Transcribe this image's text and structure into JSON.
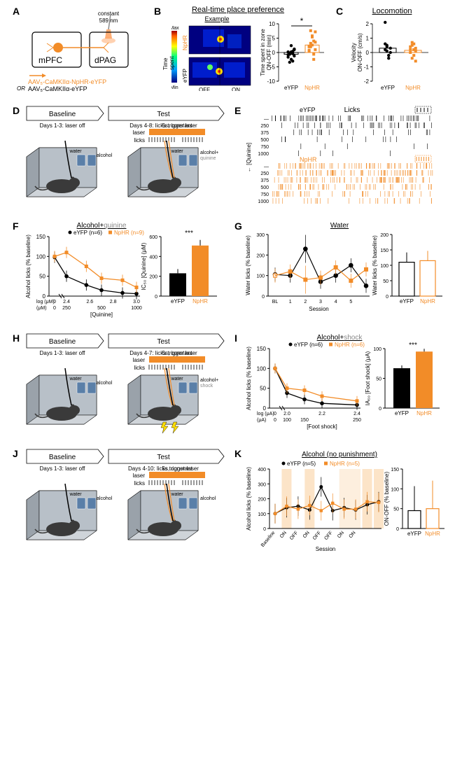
{
  "colors": {
    "orange": "#f28c28",
    "black": "#000000",
    "gray": "#888888",
    "lightorange": "#fce4c8",
    "bg": "#ffffff"
  },
  "panelA": {
    "label": "A",
    "constant_label": "constant",
    "wavelength": "589 nm",
    "left_box": "mPFC",
    "right_box": "dPAG",
    "virus1": "AAV₅-CaMKIIα-NpHR-eYFP",
    "virus2": "AAV₅-CaMKIIα-eYFP",
    "or_text": "OR"
  },
  "panelB": {
    "label": "B",
    "title": "Real-time place preference",
    "subtitle": "Example",
    "hm_label1": "NpHR",
    "hm_label2": "eYFP",
    "colorbar_top": "Max",
    "colorbar_bot": "Min",
    "colorbar_title": "Time spent",
    "off": "OFF",
    "on": "ON",
    "ylabel": "Time spent in zone\nON-OFF (min)",
    "sig": "*",
    "x1": "eYFP",
    "x2": "NpHR",
    "yticks": [
      -10,
      -5,
      0,
      5,
      10
    ],
    "eYFP_vals": [
      0.2,
      -0.6,
      -2.4,
      -0.4,
      1.0,
      -1.6,
      -3.4,
      0.2,
      -3.0,
      1.2,
      -0.8,
      -0.6,
      2.4,
      0.4,
      -1.2
    ],
    "NpHR_vals": [
      2.0,
      3.2,
      5.4,
      4.0,
      1.0,
      0.8,
      7.6,
      2.6,
      -2.4,
      7.2,
      0.4,
      2.0,
      5.8,
      -0.6,
      3.6,
      2.2
    ]
  },
  "panelC": {
    "label": "C",
    "title": "Locomotion",
    "ylabel": "Velocity\nON-OFF (cm/s)",
    "x1": "eYFP",
    "x2": "NpHR",
    "yticks": [
      -2,
      -1,
      0,
      1,
      2
    ],
    "eYFP_vals": [
      0.2,
      0.4,
      -0.4,
      0.0,
      0.6,
      0.1,
      -0.2,
      0.3,
      2.1,
      0.5
    ],
    "NpHR_vals": [
      0.2,
      -0.4,
      0.6,
      0.3,
      0.0,
      0.5,
      -0.2,
      0.1,
      0.4,
      0.7,
      0.2,
      -0.6
    ]
  },
  "panelD": {
    "label": "D",
    "baseline_title": "Baseline",
    "baseline_sub": "Days 1-3: laser off",
    "test_title": "Test",
    "test_sub": "Days 4-8: licks trigger laser",
    "laser_dur": "5s, constant",
    "laser_label": "laser",
    "licks_label": "licks",
    "water": "water",
    "alcohol": "alcohol",
    "quinine": "quinine"
  },
  "panelE": {
    "label": "E",
    "title": "Licks",
    "eYFP_label": "eYFP",
    "NpHR_label": "NpHR",
    "ylabel": "[Quinine]",
    "conc": [
      "—",
      "250",
      "375",
      "500",
      "750",
      "1000"
    ],
    "xlabel": "Time (min)",
    "xmin": 0,
    "xmax": 60
  },
  "panelF": {
    "label": "F",
    "title": "Alcohol+",
    "title_gray": "quinine",
    "legend_eYFP": "eYFP (n=6)",
    "legend_NpHR": "NpHR (n=9)",
    "ylabel": "Alcohol licks (% baseline)",
    "xlabel1": "log (μM)",
    "xlabel2": "(μM)",
    "xlabel3": "[Quinine]",
    "xticks_log": [
      "0",
      "",
      "2.4",
      "",
      "2.6",
      "",
      "2.8",
      "",
      "3.0"
    ],
    "xticks_lin": [
      "0",
      "",
      "250",
      "",
      "500",
      "",
      "",
      "1000"
    ],
    "yticks": [
      0,
      50,
      100,
      150
    ],
    "eYFP_x": [
      0,
      2.4,
      2.57,
      2.7,
      2.88,
      3.0
    ],
    "eYFP_y": [
      98,
      50,
      28,
      15,
      8,
      6
    ],
    "NpHR_x": [
      0,
      2.4,
      2.57,
      2.7,
      2.88,
      3.0
    ],
    "NpHR_y": [
      100,
      110,
      75,
      45,
      40,
      22
    ],
    "bar_ylabel": "IC₅₀ [Quinine] (μM)",
    "bar_yticks": [
      0,
      200,
      400,
      600
    ],
    "bar_eYFP": 230,
    "bar_NpHR": 510,
    "sig": "***",
    "x1": "eYFP",
    "x2": "NpHR"
  },
  "panelG": {
    "label": "G",
    "title": "Water",
    "ylabel": "Water licks (% baseline)",
    "xlabel": "Session",
    "xticks": [
      "BL",
      "1",
      "2",
      "3",
      "4",
      "5"
    ],
    "yticks": [
      0,
      100,
      200,
      300
    ],
    "eYFP_y": [
      105,
      100,
      230,
      70,
      100,
      150,
      50
    ],
    "NpHR_y": [
      100,
      120,
      80,
      90,
      140,
      75,
      130
    ],
    "bar_ylabel": "Water licks (% baseline)",
    "bar_yticks": [
      0,
      50,
      100,
      150,
      200
    ],
    "bar_eYFP": 110,
    "bar_NpHR": 115,
    "x1": "eYFP",
    "x2": "NpHR"
  },
  "panelH": {
    "label": "H",
    "baseline_title": "Baseline",
    "baseline_sub": "Days 1-3: laser off",
    "test_title": "Test",
    "test_sub": "Days 4-7: licks trigger laser",
    "laser_dur": "5s, constant",
    "laser_label": "laser",
    "licks_label": "licks",
    "water": "water",
    "alcohol": "alcohol",
    "shock": "shock"
  },
  "panelI": {
    "label": "I",
    "title": "Alcohol+",
    "title_gray": "shock",
    "legend_eYFP": "eYFP (n=6)",
    "legend_NpHR": "NpHR (n=6)",
    "ylabel": "Alcohol licks (% baseline)",
    "xlabel1": "log (μA)",
    "xlabel2": "(μA)",
    "xlabel3": "[Foot shock]",
    "xticks_log": [
      "0",
      "",
      "2.0",
      "",
      "2.2",
      "",
      "2.4"
    ],
    "xticks_lin": [
      "0",
      "",
      "100",
      "150",
      "",
      "250"
    ],
    "yticks": [
      0,
      50,
      100,
      150
    ],
    "eYFP_y": [
      100,
      38,
      22,
      12,
      8
    ],
    "NpHR_y": [
      100,
      50,
      45,
      30,
      18
    ],
    "bar_ylabel": "IA₅₀ [Foot shock] (μA)",
    "bar_yticks": [
      0,
      50,
      100
    ],
    "bar_eYFP": 67,
    "bar_NpHR": 95,
    "sig": "***",
    "x1": "eYFP",
    "x2": "NpHR"
  },
  "panelJ": {
    "label": "J",
    "baseline_title": "Baseline",
    "baseline_sub": "Days 1-3: laser off",
    "test_title": "Test",
    "test_sub": "Days 4-10: licks trigger laser",
    "laser_dur": "5s, constant",
    "laser_label": "laser",
    "licks_label": "licks",
    "water": "water",
    "alcohol": "alcohol"
  },
  "panelK": {
    "label": "K",
    "title": "Alcohol (no punishment)",
    "legend_eYFP": "eYFP (n=5)",
    "legend_NpHR": "NpHR (n=5)",
    "ylabel": "Alcohol licks (% baseline)",
    "xlabel": "Session",
    "xticks": [
      "Baseline",
      "ON",
      "OFF",
      "ON",
      "OFF",
      "OFF",
      "ON",
      "ON"
    ],
    "yticks": [
      0,
      100,
      200,
      300,
      400
    ],
    "eYFP_y": [
      100,
      140,
      150,
      125,
      280,
      120,
      140,
      125,
      160,
      180
    ],
    "NpHR_y": [
      100,
      150,
      130,
      155,
      120,
      170,
      130,
      130,
      180,
      175
    ],
    "bar_ylabel": "ON-OFF (% baseline)",
    "bar_yticks": [
      0,
      50,
      100,
      150
    ],
    "bar_eYFP": 45,
    "bar_NpHR": 50,
    "x1": "eYFP",
    "x2": "NpHR"
  }
}
